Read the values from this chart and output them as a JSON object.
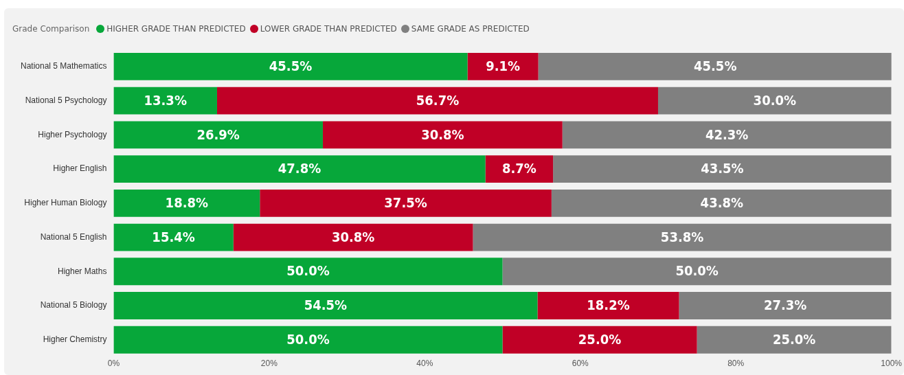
{
  "chart_data": {
    "type": "bar",
    "orientation": "horizontal",
    "stacked": true,
    "legend_title": "Grade Comparison",
    "legend": "top left",
    "grid": false,
    "categories": [
      "National 5 Mathematics",
      "National 5 Psychology",
      "Higher Psychology",
      "Higher English",
      "Higher Human Biology",
      "National 5 English",
      "Higher Maths",
      "National 5 Biology",
      "Higher Chemistry"
    ],
    "series": [
      {
        "name": "HIGHER GRADE THAN PREDICTED",
        "color": "#07a73a",
        "values": [
          45.5,
          13.3,
          26.9,
          47.8,
          18.8,
          15.4,
          50.0,
          54.5,
          50.0
        ],
        "value_labels": [
          "45.5%",
          "13.3%",
          "26.9%",
          "47.8%",
          "18.8%",
          "15.4%",
          "50.0%",
          "54.5%",
          "50.0%"
        ]
      },
      {
        "name": "LOWER GRADE THAN PREDICTED",
        "color": "#c00026",
        "values": [
          9.1,
          56.7,
          30.8,
          8.7,
          37.5,
          30.8,
          null,
          18.2,
          25.0
        ],
        "value_labels": [
          "9.1%",
          "56.7%",
          "30.8%",
          "8.7%",
          "37.5%",
          "30.8%",
          null,
          "18.2%",
          "25.0%"
        ]
      },
      {
        "name": "SAME GRADE AS PREDICTED",
        "color": "#808080",
        "values": [
          45.5,
          30.0,
          42.3,
          43.5,
          43.8,
          53.8,
          50.0,
          27.3,
          25.0
        ],
        "value_labels": [
          "45.5%",
          "30.0%",
          "42.3%",
          "43.5%",
          "43.8%",
          "53.8%",
          "50.0%",
          "27.3%",
          "25.0%"
        ]
      }
    ],
    "xlim": [
      0,
      100
    ],
    "xticks": [
      {
        "value": 0,
        "label": "0%"
      },
      {
        "value": 20,
        "label": "20%"
      },
      {
        "value": 40,
        "label": "40%"
      },
      {
        "value": 60,
        "label": "60%"
      },
      {
        "value": 80,
        "label": "80%"
      },
      {
        "value": 100,
        "label": "100%"
      }
    ]
  }
}
